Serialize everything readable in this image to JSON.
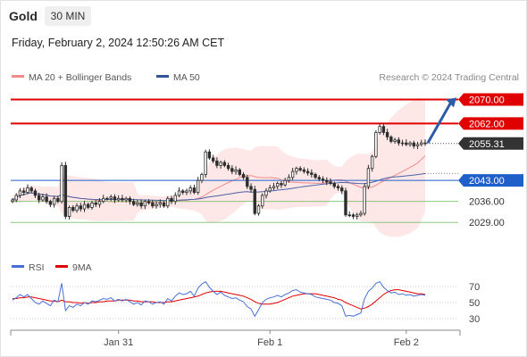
{
  "header": {
    "symbol": "Gold",
    "timeframe": "30 MIN",
    "datetime": "Friday, February 2, 2024 12:50:26 AM CET"
  },
  "legend": {
    "items": [
      {
        "label": "MA 20 + Bollinger Bands",
        "color": "#f08a8a"
      },
      {
        "label": "MA 50",
        "color": "#2f5597"
      }
    ],
    "credit": "Research © 2024 Trading Central"
  },
  "chart_data": {
    "type": "candlestick",
    "price_ylim": [
      2024,
      2074
    ],
    "candle_count": 110,
    "candles_close": [
      2036.5,
      2038,
      2039.5,
      2039,
      2040.5,
      2039.5,
      2038,
      2036.5,
      2037.5,
      2036,
      2035,
      2037,
      2036,
      2048,
      2031,
      2034,
      2033,
      2034.5,
      2033.5,
      2035,
      2034,
      2035.5,
      2035,
      2036,
      2037,
      2037,
      2037.5,
      2036.5,
      2037,
      2036.5,
      2037,
      2036,
      2035,
      2035.5,
      2034.5,
      2036,
      2035.5,
      2034.5,
      2035,
      2035.5,
      2034.5,
      2037,
      2036,
      2038,
      2039.5,
      2039,
      2039.5,
      2040.5,
      2039,
      2043,
      2045,
      2052.5,
      2050.5,
      2049.5,
      2048,
      2049,
      2048,
      2047,
      2046,
      2046.5,
      2045,
      2044,
      2041,
      2040,
      2032,
      2034.5,
      2038,
      2039.5,
      2040.5,
      2041,
      2042,
      2041.5,
      2043,
      2044,
      2046,
      2047,
      2046.5,
      2046,
      2045.5,
      2045,
      2044,
      2043.5,
      2043,
      2042.5,
      2042,
      2041,
      2040.5,
      2039.5,
      2031.5,
      2031.5,
      2031,
      2031.5,
      2032,
      2041,
      2047,
      2051,
      2059,
      2061,
      2059,
      2057.5,
      2056,
      2056.5,
      2055.5,
      2055.5,
      2055,
      2055.5,
      2054.5,
      2055,
      2055.5,
      2055.31
    ],
    "levels": [
      {
        "value": 2070.0,
        "label": "2070.00",
        "style": "resistance-box",
        "color": "#e00000"
      },
      {
        "value": 2062.0,
        "label": "2062.00",
        "style": "resistance-box",
        "color": "#e00000"
      },
      {
        "value": 2055.31,
        "label": "2055.31",
        "style": "last-price-box",
        "color": "#333333"
      },
      {
        "value": 2043.0,
        "label": "2043.00",
        "style": "pivot-box",
        "color": "#1f5fc9"
      },
      {
        "value": 2036.0,
        "label": "2036.00",
        "style": "support-text",
        "color": "#7bbf6e"
      },
      {
        "value": 2029.0,
        "label": "2029.00",
        "style": "support-text",
        "color": "#7bbf6e"
      }
    ],
    "x_ticks": [
      {
        "index": 28,
        "label": "Jan 31"
      },
      {
        "index": 68,
        "label": "Feb 1"
      },
      {
        "index": 104,
        "label": "Feb 2"
      }
    ],
    "rsi": {
      "legend": [
        {
          "label": "RSI",
          "color": "#4a6fd4"
        },
        {
          "label": "9MA",
          "color": "#e00000"
        }
      ],
      "ylim": [
        20,
        80
      ],
      "y_ticks": [
        30,
        50,
        70
      ],
      "guides": [
        30,
        50,
        70
      ],
      "rsi_values": [
        53,
        56,
        60,
        57,
        60,
        55,
        50,
        48,
        52,
        49,
        46,
        53,
        51,
        74,
        40,
        46,
        44,
        48,
        46,
        50,
        48,
        52,
        51,
        53,
        55,
        54,
        56,
        52,
        54,
        52,
        54,
        51,
        48,
        50,
        47,
        52,
        51,
        48,
        50,
        51,
        48,
        55,
        52,
        58,
        62,
        60,
        61,
        64,
        58,
        68,
        73,
        76,
        69,
        64,
        60,
        63,
        59,
        57,
        55,
        56,
        53,
        51,
        45,
        42,
        33,
        41,
        50,
        54,
        56,
        57,
        59,
        57,
        60,
        62,
        65,
        66,
        63,
        62,
        61,
        60,
        57,
        56,
        55,
        54,
        53,
        50,
        49,
        46,
        33,
        34,
        33,
        35,
        37,
        55,
        64,
        68,
        74,
        76,
        69,
        65,
        62,
        63,
        60,
        61,
        59,
        60,
        58,
        59,
        60,
        59
      ],
      "ma_values": [
        55,
        55,
        56,
        56,
        57,
        57,
        56,
        55,
        54,
        53,
        52,
        52,
        51,
        53,
        51,
        51,
        50,
        50,
        49,
        50,
        49,
        50,
        50,
        51,
        51,
        52,
        52,
        52,
        53,
        53,
        53,
        53,
        52,
        52,
        51,
        51,
        51,
        51,
        50,
        50,
        50,
        51,
        51,
        52,
        53,
        54,
        55,
        56,
        57,
        58,
        60,
        62,
        63,
        64,
        64,
        64,
        63,
        62,
        61,
        60,
        59,
        58,
        56,
        54,
        51,
        49,
        48,
        48,
        48,
        49,
        50,
        52,
        54,
        56,
        58,
        59,
        60,
        61,
        61,
        61,
        61,
        60,
        59,
        58,
        57,
        56,
        54,
        53,
        50,
        48,
        46,
        44,
        42,
        43,
        45,
        48,
        52,
        56,
        60,
        63,
        65,
        66,
        66,
        65,
        64,
        63,
        62,
        61,
        61,
        60
      ]
    }
  }
}
